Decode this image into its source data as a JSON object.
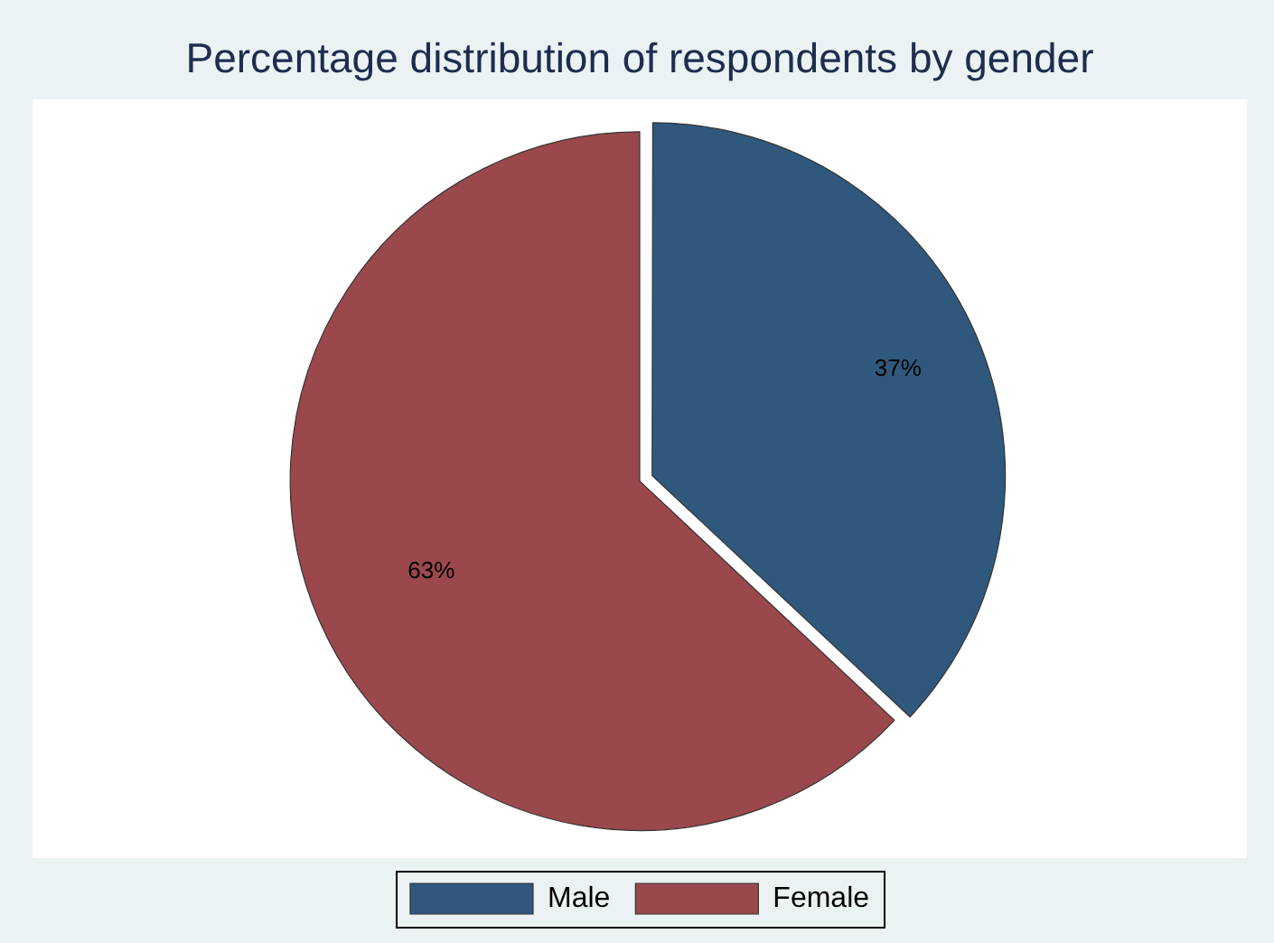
{
  "chart_data": {
    "type": "pie",
    "title": "Percentage distribution of respondents by gender",
    "categories": [
      "Male",
      "Female"
    ],
    "values": [
      37,
      63
    ],
    "value_labels": [
      "37%",
      "63%"
    ],
    "colors": [
      "#30587d",
      "#9a484c"
    ],
    "legend": "bottom"
  }
}
